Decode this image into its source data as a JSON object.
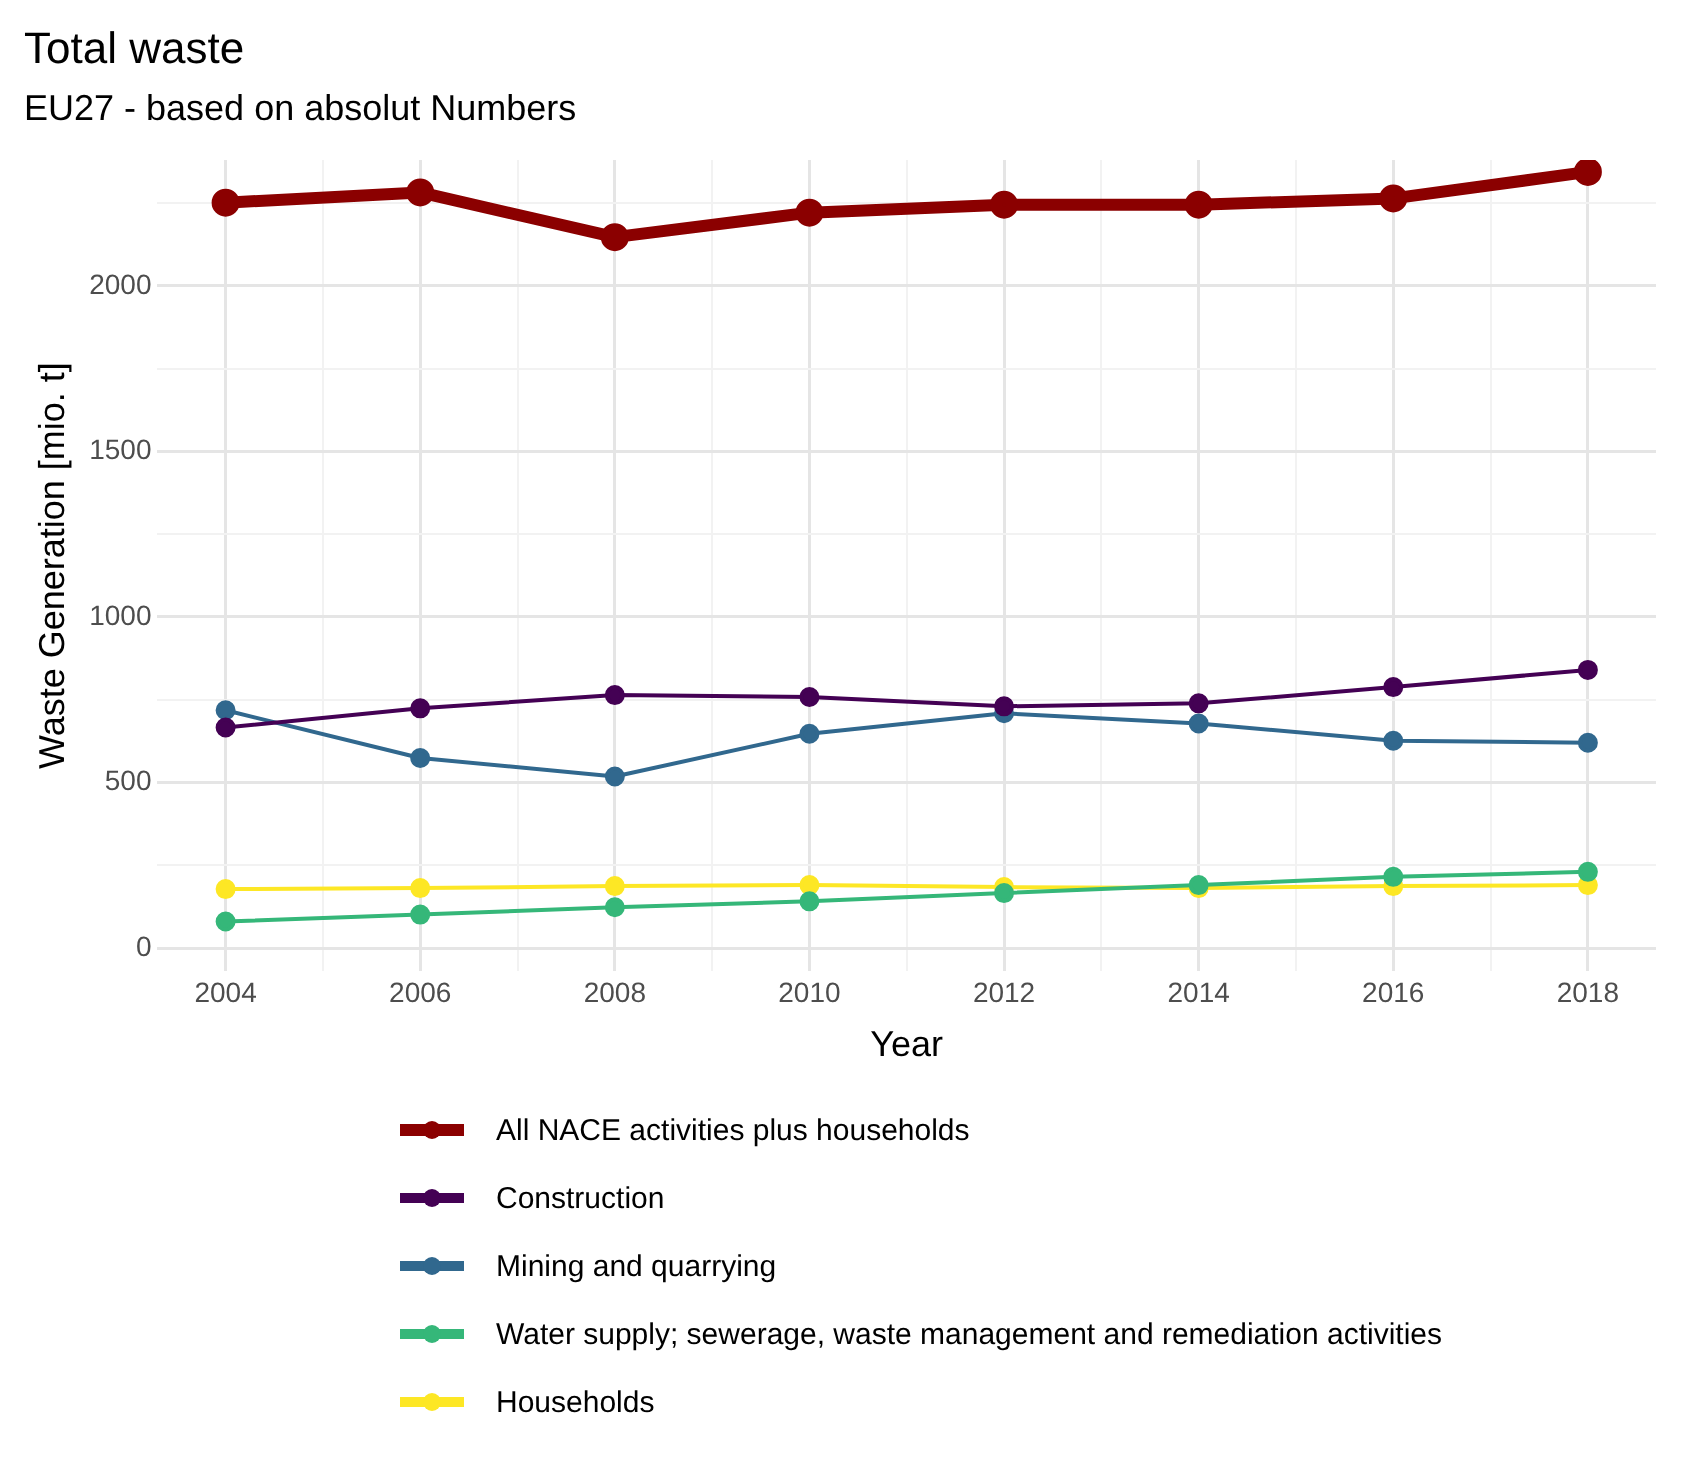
{
  "chart_data": {
    "type": "line",
    "title": "Total waste",
    "subtitle": "EU27 - based on absolut Numbers",
    "xlabel": "Year",
    "ylabel": "Waste Generation [mio. t]",
    "x": [
      2004,
      2006,
      2008,
      2010,
      2012,
      2014,
      2016,
      2018
    ],
    "xlim": [
      2003.3,
      2018.7
    ],
    "xticks": [
      2004,
      {
        "value": 2005,
        "label": null
      },
      2006,
      {
        "value": 2007,
        "label": null
      },
      2008,
      {
        "value": 2009,
        "label": null
      },
      2010,
      {
        "value": 2011,
        "label": null
      },
      2012,
      {
        "value": 2013,
        "label": null
      },
      2014,
      {
        "value": 2015,
        "label": null
      },
      2016,
      {
        "value": 2017,
        "label": null
      },
      2018
    ],
    "ylim": [
      -70,
      2380
    ],
    "yticks": [
      0,
      {
        "value": 250,
        "label": null
      },
      500,
      {
        "value": 750,
        "label": null
      },
      1000,
      {
        "value": 1250,
        "label": null
      },
      1500,
      {
        "value": 1750,
        "label": null
      },
      2000,
      {
        "value": 2250,
        "label": null
      }
    ],
    "grid": true,
    "legend": "bottom",
    "marker": "circle",
    "line_style": "solid",
    "series": [
      {
        "name": "All NACE activities plus households",
        "color": "#8b0000",
        "values": [
          2251,
          2282,
          2147,
          2221,
          2245,
          2245,
          2264,
          2344
        ]
      },
      {
        "name": "Construction",
        "color": "#440154",
        "values": [
          666,
          724,
          764,
          758,
          730,
          739,
          788,
          840
        ]
      },
      {
        "name": "Mining and quarrying",
        "color": "#31688e",
        "values": [
          718,
          574,
          518,
          647,
          709,
          678,
          626,
          620
        ]
      },
      {
        "name": "Water supply; sewerage, waste management and remediation activities",
        "color": "#35b779",
        "values": [
          80,
          101,
          123,
          141,
          166,
          190,
          215,
          230
        ]
      },
      {
        "name": "Households",
        "color": "#fde725",
        "values": [
          178,
          181,
          187,
          190,
          184,
          181,
          187,
          190
        ]
      }
    ]
  }
}
